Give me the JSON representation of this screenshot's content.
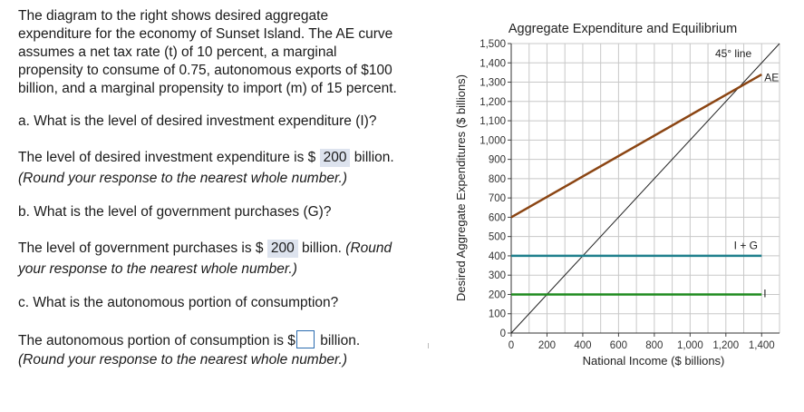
{
  "problem": {
    "intro": "The diagram to the right shows desired aggregate expenditure for the economy of Sunset Island. The AE curve assumes a net tax rate (t) of 10 percent, a marginal propensity to consume of 0.75, autonomous exports of $100 billion, and a marginal propensity to import (m) of 15 percent.",
    "intro_lines": [
      "The diagram to the right shows desired aggregate",
      "expenditure for the economy of Sunset Island. The AE curve",
      "assumes a net tax rate (t) of 10 percent, a marginal",
      "propensity to consume of 0.75, autonomous exports of $100",
      "billion, and a marginal propensity to import (m) of 15 percent."
    ],
    "q_a": "a. What is the level of desired investment expenditure (I)?",
    "a_a_prefix": "The level of desired investment expenditure is $",
    "a_a_value": "200",
    "a_a_suffix": "billion.",
    "a_a_note": "(Round your response to the nearest whole number.)",
    "q_b": "b. What is the level of government purchases (G)?",
    "a_b_prefix": "The level of government purchases is $",
    "a_b_value": "200",
    "a_b_suffix": "billion.",
    "a_b_note_1": "(Round",
    "a_b_note_2": "your response to the nearest whole number.)",
    "q_c": "c. What is the autonomous portion of consumption?",
    "a_c_prefix": "The autonomous portion of consumption is $",
    "a_c_value": "",
    "a_c_suffix": "billion.",
    "a_c_note": "(Round your response to the nearest whole number.)"
  },
  "chart_data": {
    "type": "line",
    "title": "Aggregate Expenditure and Equilibrium",
    "xlabel": "National Income ($ billions)",
    "ylabel": "Desired Aggregate Expenditures ($ billions)",
    "xlim": [
      0,
      1500
    ],
    "ylim": [
      0,
      1500
    ],
    "x_ticks": [
      0,
      200,
      400,
      600,
      800,
      1000,
      1200,
      1400
    ],
    "x_tick_labels": [
      "0",
      "200",
      "400",
      "600",
      "800",
      "1,000",
      "1,200",
      "1,400"
    ],
    "y_ticks": [
      0,
      100,
      200,
      300,
      400,
      500,
      600,
      700,
      800,
      900,
      1000,
      1100,
      1200,
      1300,
      1400,
      1500
    ],
    "y_tick_labels": [
      "0",
      "100",
      "200",
      "300",
      "400",
      "500",
      "600",
      "700",
      "800",
      "900",
      "1,000",
      "1,100",
      "1,200",
      "1,300",
      "1,400",
      "1,500"
    ],
    "grid": true,
    "series": [
      {
        "name": "45° line",
        "label": "45° line",
        "color": "#222222",
        "x": [
          0,
          1500
        ],
        "y": [
          0,
          1500
        ]
      },
      {
        "name": "AE",
        "label": "AE",
        "color": "#8b4513",
        "x": [
          0,
          1400
        ],
        "y": [
          600,
          1340
        ]
      },
      {
        "name": "I + G",
        "label": "I + G",
        "color": "#1f7f8c",
        "x": [
          0,
          1400
        ],
        "y": [
          400,
          400
        ]
      },
      {
        "name": "I",
        "label": "I",
        "color": "#1e8a1e",
        "x": [
          0,
          1400
        ],
        "y": [
          200,
          200
        ]
      }
    ]
  }
}
